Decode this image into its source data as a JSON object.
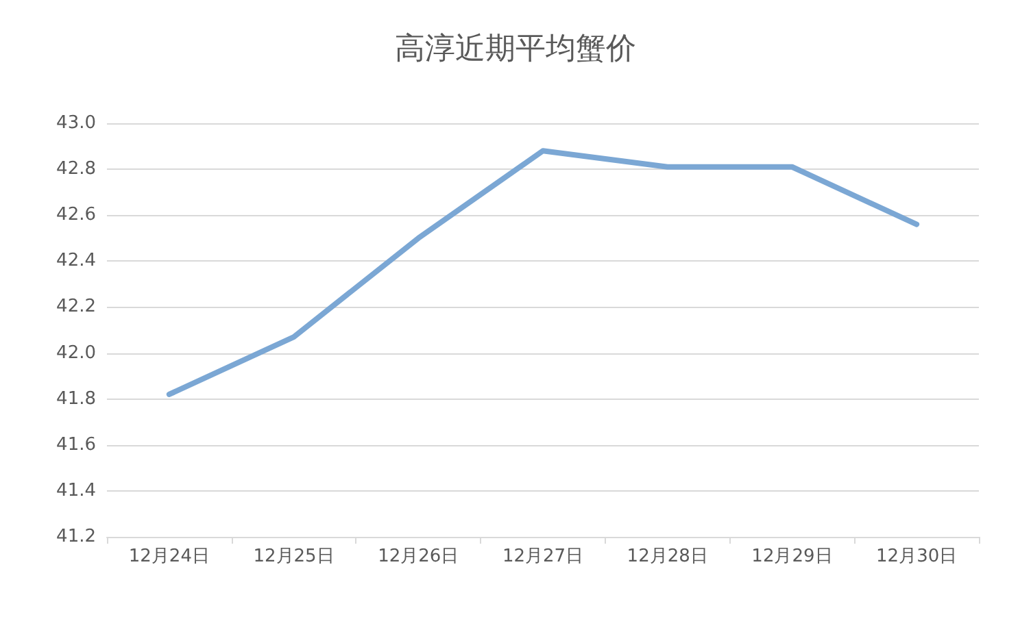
{
  "chart_data": {
    "type": "line",
    "title": "高淳近期平均蟹价",
    "categories": [
      "12月24日",
      "12月25日",
      "12月26日",
      "12月27日",
      "12月28日",
      "12月29日",
      "12月30日"
    ],
    "series": [
      {
        "color": "#7ba7d4",
        "values": [
          41.82,
          42.07,
          42.5,
          42.88,
          42.81,
          42.81,
          42.56
        ]
      }
    ],
    "ylim": [
      41.2,
      43.0
    ],
    "yticks": [
      41.2,
      41.4,
      41.6,
      41.8,
      {
        "value": 42,
        "label": "42.0"
      },
      42.2,
      42.4,
      42.6,
      42.8,
      {
        "value": 43,
        "label": "43.0"
      }
    ],
    "grid": "y",
    "marker": "none",
    "line_style": "solid"
  }
}
